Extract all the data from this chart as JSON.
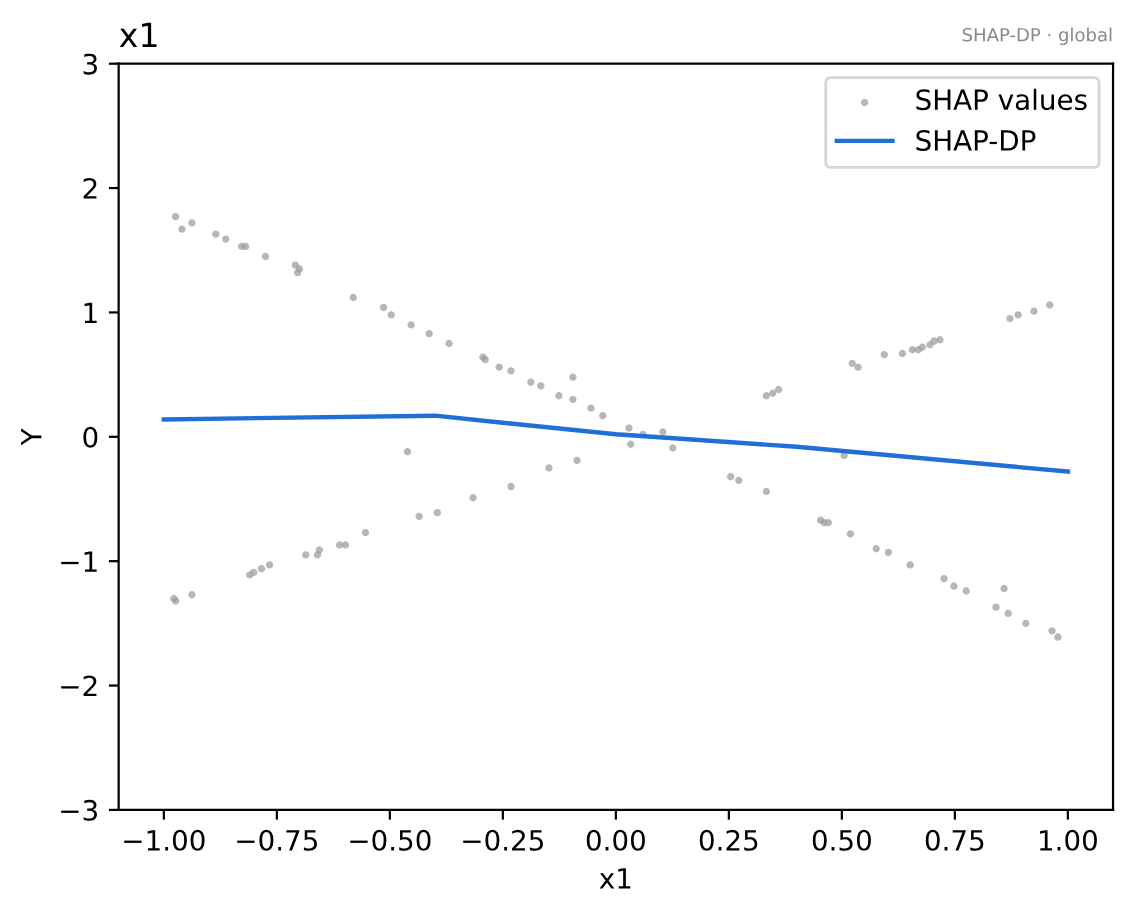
{
  "chart_data": {
    "type": "scatter",
    "title": "x1",
    "xlabel": "x1",
    "ylabel": "Y",
    "annotations": [
      "SHAP-DP · global"
    ],
    "xlim": [
      -1.1,
      1.1
    ],
    "ylim": [
      -3,
      3
    ],
    "xticks": [
      {
        "value": -1,
        "label": "−1.00"
      },
      {
        "value": -0.75,
        "label": "−0.75"
      },
      {
        "value": -0.5,
        "label": "−0.50"
      },
      {
        "value": -0.25,
        "label": "−0.25"
      },
      {
        "value": 0,
        "label": "0.00"
      },
      {
        "value": 0.25,
        "label": "0.25"
      },
      {
        "value": 0.5,
        "label": "0.50"
      },
      {
        "value": 0.75,
        "label": "0.75"
      },
      {
        "value": 1,
        "label": "1.00"
      }
    ],
    "yticks": [
      {
        "value": -3,
        "label": "−3"
      },
      {
        "value": -2,
        "label": "−2"
      },
      {
        "value": -1,
        "label": "−1"
      },
      0,
      1,
      2,
      3
    ],
    "grid": false,
    "legend": "top right",
    "series": [
      {
        "name": "SHAP values",
        "marker": "circle",
        "color": "#999999",
        "x": [
          -0.974,
          -0.96,
          -0.938,
          -0.885,
          -0.863,
          -0.828,
          -0.819,
          -0.775,
          -0.709,
          -0.7,
          -0.704,
          -0.581,
          -0.514,
          -0.497,
          -0.453,
          -0.413,
          -0.369,
          -0.294,
          -0.289,
          -0.258,
          -0.232,
          -0.188,
          -0.166,
          -0.126,
          -0.095,
          -0.055,
          -0.029,
          0.029,
          0.06,
          0.104,
          0.126,
          0.254,
          0.272,
          0.333,
          0.453,
          0.461,
          0.47,
          0.519,
          0.576,
          0.603,
          0.651,
          0.726,
          0.748,
          0.775,
          0.859,
          0.841,
          0.868,
          0.907,
          0.965,
          0.978,
          -0.095,
          -0.461,
          0.033,
          0.505,
          -0.974,
          -0.978,
          -0.938,
          -0.81,
          -0.801,
          -0.784,
          -0.766,
          -0.686,
          -0.66,
          -0.656,
          -0.611,
          -0.598,
          -0.554,
          -0.435,
          -0.395,
          -0.316,
          -0.232,
          -0.148,
          -0.086,
          0.333,
          0.347,
          0.36,
          0.523,
          0.536,
          0.594,
          0.634,
          0.656,
          0.669,
          0.678,
          0.695,
          0.704,
          0.717,
          0.872,
          0.89,
          0.925,
          0.96
        ],
        "values": [
          1.77,
          1.67,
          1.72,
          1.63,
          1.59,
          1.53,
          1.53,
          1.45,
          1.38,
          1.35,
          1.32,
          1.12,
          1.04,
          0.98,
          0.9,
          0.83,
          0.75,
          0.64,
          0.62,
          0.56,
          0.53,
          0.44,
          0.41,
          0.33,
          0.3,
          0.23,
          0.17,
          0.07,
          0.02,
          0.04,
          -0.09,
          -0.32,
          -0.35,
          -0.44,
          -0.67,
          -0.69,
          -0.69,
          -0.78,
          -0.9,
          -0.93,
          -1.03,
          -1.14,
          -1.2,
          -1.24,
          -1.22,
          -1.37,
          -1.42,
          -1.5,
          -1.56,
          -1.61,
          0.48,
          -0.12,
          -0.06,
          -0.15,
          -1.32,
          -1.3,
          -1.27,
          -1.11,
          -1.09,
          -1.06,
          -1.03,
          -0.95,
          -0.95,
          -0.91,
          -0.87,
          -0.87,
          -0.77,
          -0.64,
          -0.61,
          -0.49,
          -0.4,
          -0.25,
          -0.19,
          0.33,
          0.35,
          0.38,
          0.59,
          0.56,
          0.66,
          0.67,
          0.7,
          0.7,
          0.72,
          0.74,
          0.77,
          0.78,
          0.95,
          0.98,
          1.01,
          1.06
        ]
      },
      {
        "name": "SHAP-DP",
        "type": "line",
        "marker": "none",
        "line_style": "solid",
        "color": "#1f6fd6",
        "x": [
          -1,
          -0.4,
          0,
          0.4,
          1
        ],
        "values": [
          0.14,
          0.17,
          0.02,
          -0.08,
          -0.28
        ]
      }
    ]
  }
}
